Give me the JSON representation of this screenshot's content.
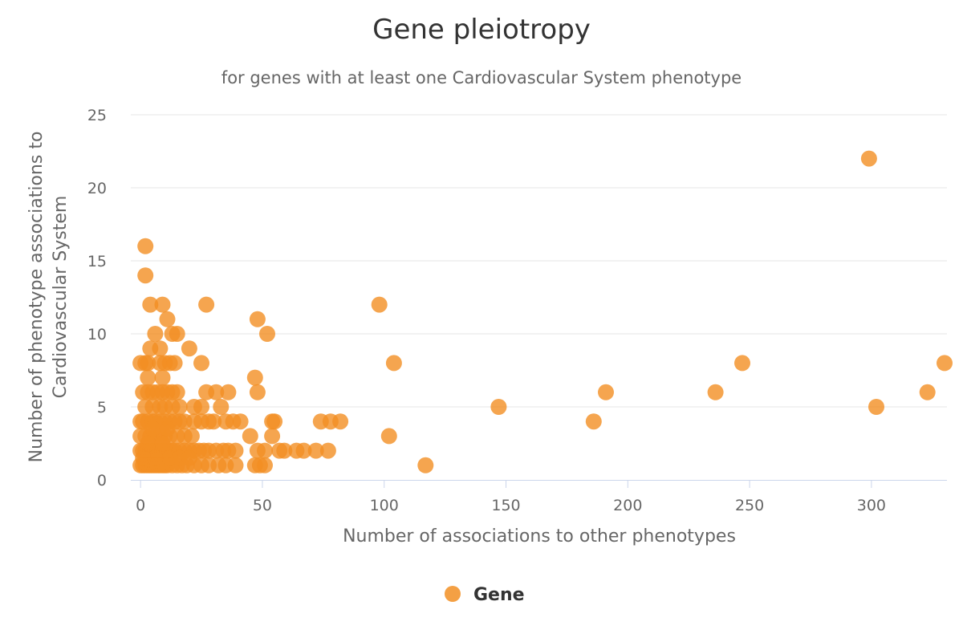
{
  "chart_data": {
    "type": "scatter",
    "title": "Gene pleiotropy",
    "subtitle": "for genes with at least one Cardiovascular System phenotype",
    "xlabel": "Number of associations to other phenotypes",
    "ylabel_lines": [
      "Number of phenotype associations to",
      "Cardiovascular System"
    ],
    "xlim": [
      -4,
      331
    ],
    "ylim": [
      0,
      25
    ],
    "xticks": [
      0,
      50,
      100,
      150,
      200,
      250,
      300
    ],
    "yticks": [
      0,
      5,
      10,
      15,
      20,
      25
    ],
    "grid": true,
    "legend_position": "bottom-center",
    "series": [
      {
        "name": "Gene",
        "color": "#f28f23",
        "points": [
          [
            299,
            22
          ],
          [
            2,
            16
          ],
          [
            2,
            14
          ],
          [
            4,
            12
          ],
          [
            9,
            12
          ],
          [
            27,
            12
          ],
          [
            98,
            12
          ],
          [
            11,
            11
          ],
          [
            48,
            11
          ],
          [
            6,
            10
          ],
          [
            13,
            10
          ],
          [
            15,
            10
          ],
          [
            52,
            10
          ],
          [
            8,
            9
          ],
          [
            20,
            9
          ],
          [
            4,
            9
          ],
          [
            0,
            8
          ],
          [
            2,
            8
          ],
          [
            3,
            8
          ],
          [
            8,
            8
          ],
          [
            10,
            8
          ],
          [
            12,
            8
          ],
          [
            14,
            8
          ],
          [
            25,
            8
          ],
          [
            104,
            8
          ],
          [
            247,
            8
          ],
          [
            330,
            8
          ],
          [
            3,
            7
          ],
          [
            9,
            7
          ],
          [
            47,
            7
          ],
          [
            1,
            6
          ],
          [
            3,
            6
          ],
          [
            5,
            6
          ],
          [
            7,
            6
          ],
          [
            9,
            6
          ],
          [
            11,
            6
          ],
          [
            13,
            6
          ],
          [
            15,
            6
          ],
          [
            27,
            6
          ],
          [
            31,
            6
          ],
          [
            36,
            6
          ],
          [
            48,
            6
          ],
          [
            191,
            6
          ],
          [
            236,
            6
          ],
          [
            323,
            6
          ],
          [
            2,
            5
          ],
          [
            5,
            5
          ],
          [
            8,
            5
          ],
          [
            10,
            5
          ],
          [
            13,
            5
          ],
          [
            16,
            5
          ],
          [
            22,
            5
          ],
          [
            25,
            5
          ],
          [
            33,
            5
          ],
          [
            147,
            5
          ],
          [
            302,
            5
          ],
          [
            0,
            4
          ],
          [
            1,
            4
          ],
          [
            3,
            4
          ],
          [
            5,
            4
          ],
          [
            6,
            4
          ],
          [
            8,
            4
          ],
          [
            10,
            4
          ],
          [
            12,
            4
          ],
          [
            14,
            4
          ],
          [
            16,
            4
          ],
          [
            18,
            4
          ],
          [
            22,
            4
          ],
          [
            25,
            4
          ],
          [
            28,
            4
          ],
          [
            30,
            4
          ],
          [
            35,
            4
          ],
          [
            38,
            4
          ],
          [
            41,
            4
          ],
          [
            54,
            4
          ],
          [
            55,
            4
          ],
          [
            74,
            4
          ],
          [
            78,
            4
          ],
          [
            82,
            4
          ],
          [
            186,
            4
          ],
          [
            0,
            3
          ],
          [
            2,
            3
          ],
          [
            4,
            3
          ],
          [
            6,
            3
          ],
          [
            8,
            3
          ],
          [
            10,
            3
          ],
          [
            12,
            3
          ],
          [
            15,
            3
          ],
          [
            18,
            3
          ],
          [
            21,
            3
          ],
          [
            45,
            3
          ],
          [
            54,
            3
          ],
          [
            102,
            3
          ],
          [
            0,
            2
          ],
          [
            1,
            2
          ],
          [
            2,
            2
          ],
          [
            3,
            2
          ],
          [
            4,
            2
          ],
          [
            5,
            2
          ],
          [
            6,
            2
          ],
          [
            7,
            2
          ],
          [
            8,
            2
          ],
          [
            9,
            2
          ],
          [
            10,
            2
          ],
          [
            11,
            2
          ],
          [
            12,
            2
          ],
          [
            13,
            2
          ],
          [
            14,
            2
          ],
          [
            16,
            2
          ],
          [
            18,
            2
          ],
          [
            20,
            2
          ],
          [
            22,
            2
          ],
          [
            24,
            2
          ],
          [
            26,
            2
          ],
          [
            28,
            2
          ],
          [
            31,
            2
          ],
          [
            34,
            2
          ],
          [
            36,
            2
          ],
          [
            39,
            2
          ],
          [
            48,
            2
          ],
          [
            51,
            2
          ],
          [
            57,
            2
          ],
          [
            59,
            2
          ],
          [
            64,
            2
          ],
          [
            67,
            2
          ],
          [
            72,
            2
          ],
          [
            77,
            2
          ],
          [
            0,
            1
          ],
          [
            1,
            1
          ],
          [
            2,
            1
          ],
          [
            3,
            1
          ],
          [
            4,
            1
          ],
          [
            5,
            1
          ],
          [
            6,
            1
          ],
          [
            7,
            1
          ],
          [
            8,
            1
          ],
          [
            9,
            1
          ],
          [
            10,
            1
          ],
          [
            11,
            1
          ],
          [
            13,
            1
          ],
          [
            15,
            1
          ],
          [
            17,
            1
          ],
          [
            19,
            1
          ],
          [
            22,
            1
          ],
          [
            25,
            1
          ],
          [
            28,
            1
          ],
          [
            32,
            1
          ],
          [
            35,
            1
          ],
          [
            39,
            1
          ],
          [
            47,
            1
          ],
          [
            49,
            1
          ],
          [
            51,
            1
          ],
          [
            117,
            1
          ],
          [
            1,
            1.5
          ],
          [
            3,
            2.5
          ],
          [
            6,
            1.5
          ],
          [
            9,
            2.5
          ],
          [
            12,
            1.5
          ],
          [
            16,
            1.5
          ],
          [
            20,
            1.5
          ],
          [
            5,
            3.5
          ],
          [
            11,
            3.5
          ]
        ]
      }
    ]
  }
}
